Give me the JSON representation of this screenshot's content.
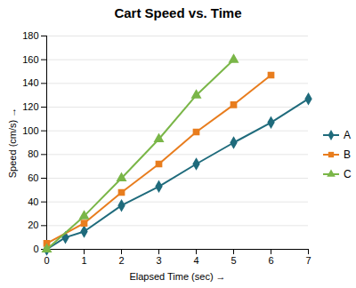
{
  "chart_data": {
    "type": "line",
    "title": "Cart Speed vs. Time",
    "xlabel": "Elapsed Time (sec)",
    "ylabel": "Speed (cm/s)",
    "xlim": [
      0,
      7
    ],
    "ylim": [
      0,
      180
    ],
    "xticks": [
      0,
      1,
      2,
      3,
      4,
      5,
      6,
      7
    ],
    "yticks": [
      0,
      20,
      40,
      60,
      80,
      100,
      120,
      140,
      160,
      180
    ],
    "grid": true,
    "legend": "right",
    "series": [
      {
        "name": "A",
        "color": "#1f6b7c",
        "marker": "diamond",
        "x": [
          0,
          0.5,
          1,
          2,
          3,
          4,
          5,
          6,
          7
        ],
        "values": [
          0,
          10,
          15,
          37,
          53,
          72,
          90,
          107,
          127
        ]
      },
      {
        "name": "B",
        "color": "#e87d1e",
        "marker": "square",
        "x": [
          0,
          1,
          2,
          3,
          4,
          5,
          6
        ],
        "values": [
          5,
          22,
          48,
          72,
          99,
          122,
          147
        ]
      },
      {
        "name": "C",
        "color": "#7ab648",
        "marker": "triangle",
        "x": [
          0,
          1,
          2,
          3,
          4,
          5
        ],
        "values": [
          0,
          28,
          60,
          93,
          130,
          160
        ]
      }
    ]
  }
}
